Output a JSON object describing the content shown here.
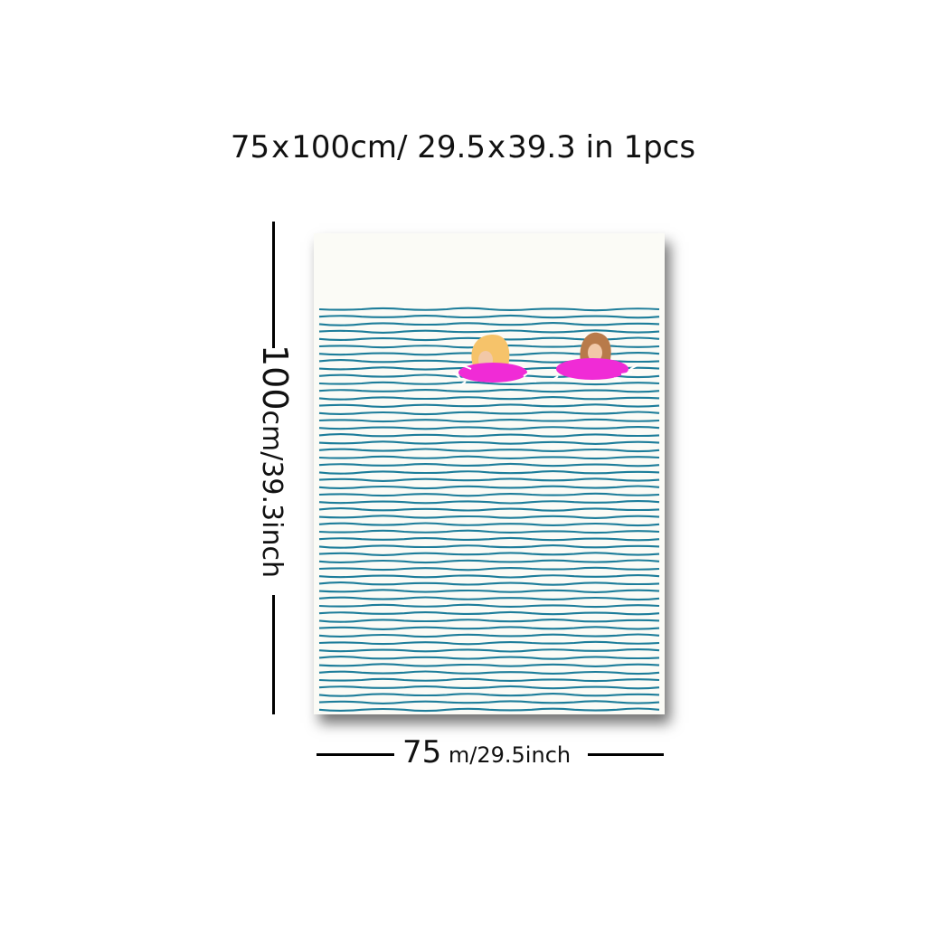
{
  "title": {
    "size_cm": "75",
    "x1": "x",
    "size_cm2": "100cm/",
    "size_in": "29.5",
    "x2": "x",
    "size_in2": "39.3",
    "in_label": "in",
    "qty_num": "1",
    "qty_label": "pcs"
  },
  "height_dim": {
    "value": "100",
    "unit": "cm/39.3inch"
  },
  "width_dim": {
    "value": "75",
    "unit": "m/29.5inch"
  },
  "artwork": {
    "water_color": "#1d7d9a",
    "float_color": "#f02bd6",
    "background_color": "#fbfbf6"
  }
}
